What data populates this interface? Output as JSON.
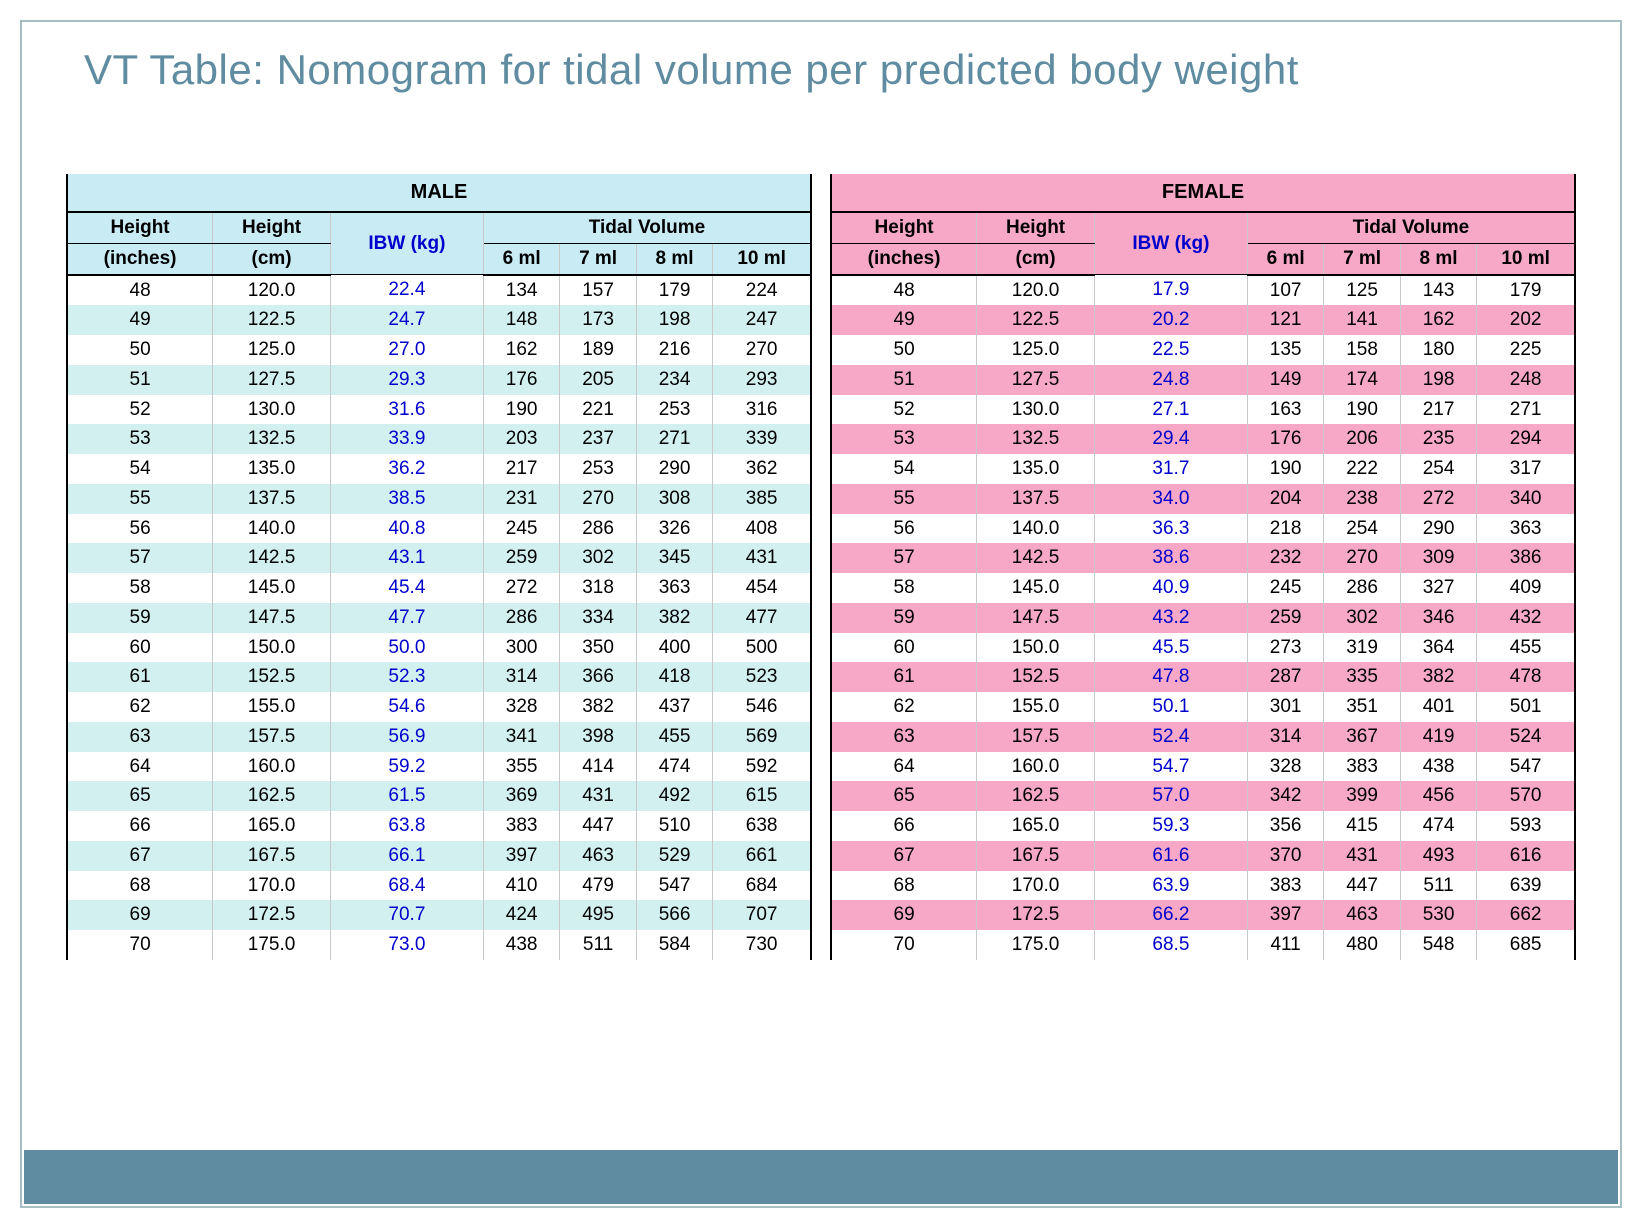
{
  "title": "VT Table: Nomogram for tidal volume per predicted body weight",
  "colors": {
    "title": "#5f8ca0",
    "border": "#a7bfc4",
    "footer": "#5f8ca0",
    "male_header_bg": "#c9ebf4",
    "male_row_odd_bg": "#d3f0f0",
    "male_row_even_bg": "#ffffff",
    "female_header_bg": "#f6a8c6",
    "female_row_odd_bg": "#f6a8c6",
    "female_row_even_bg": "#ffffff",
    "ibw_text": "#0000cc",
    "cell_border": "#c9c9c9",
    "outer_border": "#000000"
  },
  "headers": {
    "height_in_top": "Height",
    "height_in_bot": "(inches)",
    "height_cm_top": "Height",
    "height_cm_bot": "(cm)",
    "ibw": "IBW (kg)",
    "tv_group": "Tidal Volume",
    "tv_cols": [
      "6 ml",
      "7 ml",
      "8 ml",
      "10 ml"
    ]
  },
  "male": {
    "label": "MALE",
    "rows": [
      [
        "48",
        "120.0",
        "22.4",
        "134",
        "157",
        "179",
        "224"
      ],
      [
        "49",
        "122.5",
        "24.7",
        "148",
        "173",
        "198",
        "247"
      ],
      [
        "50",
        "125.0",
        "27.0",
        "162",
        "189",
        "216",
        "270"
      ],
      [
        "51",
        "127.5",
        "29.3",
        "176",
        "205",
        "234",
        "293"
      ],
      [
        "52",
        "130.0",
        "31.6",
        "190",
        "221",
        "253",
        "316"
      ],
      [
        "53",
        "132.5",
        "33.9",
        "203",
        "237",
        "271",
        "339"
      ],
      [
        "54",
        "135.0",
        "36.2",
        "217",
        "253",
        "290",
        "362"
      ],
      [
        "55",
        "137.5",
        "38.5",
        "231",
        "270",
        "308",
        "385"
      ],
      [
        "56",
        "140.0",
        "40.8",
        "245",
        "286",
        "326",
        "408"
      ],
      [
        "57",
        "142.5",
        "43.1",
        "259",
        "302",
        "345",
        "431"
      ],
      [
        "58",
        "145.0",
        "45.4",
        "272",
        "318",
        "363",
        "454"
      ],
      [
        "59",
        "147.5",
        "47.7",
        "286",
        "334",
        "382",
        "477"
      ],
      [
        "60",
        "150.0",
        "50.0",
        "300",
        "350",
        "400",
        "500"
      ],
      [
        "61",
        "152.5",
        "52.3",
        "314",
        "366",
        "418",
        "523"
      ],
      [
        "62",
        "155.0",
        "54.6",
        "328",
        "382",
        "437",
        "546"
      ],
      [
        "63",
        "157.5",
        "56.9",
        "341",
        "398",
        "455",
        "569"
      ],
      [
        "64",
        "160.0",
        "59.2",
        "355",
        "414",
        "474",
        "592"
      ],
      [
        "65",
        "162.5",
        "61.5",
        "369",
        "431",
        "492",
        "615"
      ],
      [
        "66",
        "165.0",
        "63.8",
        "383",
        "447",
        "510",
        "638"
      ],
      [
        "67",
        "167.5",
        "66.1",
        "397",
        "463",
        "529",
        "661"
      ],
      [
        "68",
        "170.0",
        "68.4",
        "410",
        "479",
        "547",
        "684"
      ],
      [
        "69",
        "172.5",
        "70.7",
        "424",
        "495",
        "566",
        "707"
      ],
      [
        "70",
        "175.0",
        "73.0",
        "438",
        "511",
        "584",
        "730"
      ]
    ]
  },
  "female": {
    "label": "FEMALE",
    "rows": [
      [
        "48",
        "120.0",
        "17.9",
        "107",
        "125",
        "143",
        "179"
      ],
      [
        "49",
        "122.5",
        "20.2",
        "121",
        "141",
        "162",
        "202"
      ],
      [
        "50",
        "125.0",
        "22.5",
        "135",
        "158",
        "180",
        "225"
      ],
      [
        "51",
        "127.5",
        "24.8",
        "149",
        "174",
        "198",
        "248"
      ],
      [
        "52",
        "130.0",
        "27.1",
        "163",
        "190",
        "217",
        "271"
      ],
      [
        "53",
        "132.5",
        "29.4",
        "176",
        "206",
        "235",
        "294"
      ],
      [
        "54",
        "135.0",
        "31.7",
        "190",
        "222",
        "254",
        "317"
      ],
      [
        "55",
        "137.5",
        "34.0",
        "204",
        "238",
        "272",
        "340"
      ],
      [
        "56",
        "140.0",
        "36.3",
        "218",
        "254",
        "290",
        "363"
      ],
      [
        "57",
        "142.5",
        "38.6",
        "232",
        "270",
        "309",
        "386"
      ],
      [
        "58",
        "145.0",
        "40.9",
        "245",
        "286",
        "327",
        "409"
      ],
      [
        "59",
        "147.5",
        "43.2",
        "259",
        "302",
        "346",
        "432"
      ],
      [
        "60",
        "150.0",
        "45.5",
        "273",
        "319",
        "364",
        "455"
      ],
      [
        "61",
        "152.5",
        "47.8",
        "287",
        "335",
        "382",
        "478"
      ],
      [
        "62",
        "155.0",
        "50.1",
        "301",
        "351",
        "401",
        "501"
      ],
      [
        "63",
        "157.5",
        "52.4",
        "314",
        "367",
        "419",
        "524"
      ],
      [
        "64",
        "160.0",
        "54.7",
        "328",
        "383",
        "438",
        "547"
      ],
      [
        "65",
        "162.5",
        "57.0",
        "342",
        "399",
        "456",
        "570"
      ],
      [
        "66",
        "165.0",
        "59.3",
        "356",
        "415",
        "474",
        "593"
      ],
      [
        "67",
        "167.5",
        "61.6",
        "370",
        "431",
        "493",
        "616"
      ],
      [
        "68",
        "170.0",
        "63.9",
        "383",
        "447",
        "511",
        "639"
      ],
      [
        "69",
        "172.5",
        "66.2",
        "397",
        "463",
        "530",
        "662"
      ],
      [
        "70",
        "175.0",
        "68.5",
        "411",
        "480",
        "548",
        "685"
      ]
    ]
  }
}
